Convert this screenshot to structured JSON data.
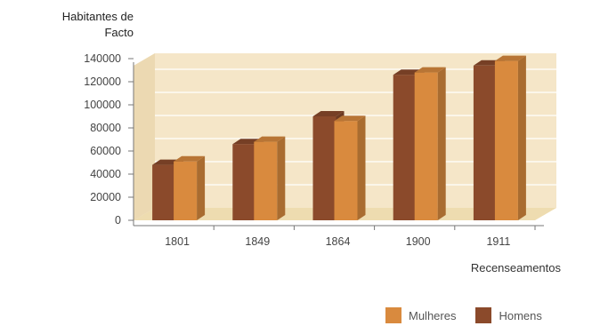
{
  "chart_data": {
    "type": "bar",
    "ylabel": "Habitantes de Facto",
    "ylabel_lines": [
      "Habitantes de",
      "Facto"
    ],
    "xlabel": "Recenseamentos",
    "categories": [
      "1801",
      "1849",
      "1864",
      "1900",
      "1911"
    ],
    "yticks": [
      "0",
      "20000",
      "40000",
      "60000",
      "80000",
      "100000",
      "120000",
      "140000"
    ],
    "ylim": [
      0,
      140000
    ],
    "series": [
      {
        "name": "Homens",
        "color": "#8b4a2b",
        "values": [
          48000,
          66000,
          90000,
          126000,
          134000
        ]
      },
      {
        "name": "Mulheres",
        "color": "#d98a3e",
        "values": [
          51000,
          68000,
          86000,
          128000,
          138000
        ]
      }
    ],
    "legend": [
      "Mulheres",
      "Homens"
    ],
    "background_color": "#f5e6c8",
    "grid": true
  }
}
